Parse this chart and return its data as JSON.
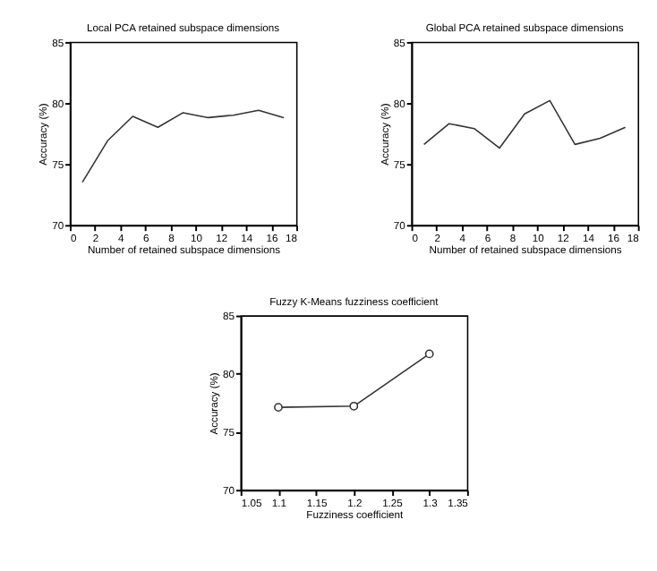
{
  "chart_data": [
    {
      "type": "line",
      "title": "Local PCA retained subspace dimensions",
      "xlabel": "Number of retained subspace dimensions",
      "ylabel": "Accuracy (%)",
      "x": [
        1,
        3,
        5,
        7,
        9,
        11,
        13,
        15,
        17
      ],
      "values": [
        73.5,
        76.9,
        78.9,
        78.0,
        79.2,
        78.8,
        79.0,
        79.4,
        78.8
      ],
      "color": "#333333",
      "xlim": [
        0,
        18
      ],
      "ylim": [
        70,
        85
      ],
      "xticks": [
        0,
        2,
        4,
        6,
        8,
        10,
        12,
        14,
        16,
        18
      ],
      "yticks": [
        70,
        75,
        80,
        85
      ],
      "grid": false,
      "marker": "none"
    },
    {
      "type": "line",
      "title": "Global PCA retained subspace dimensions",
      "xlabel": "Number of retained subspace dimensions",
      "ylabel": "Accuracy (%)",
      "x": [
        1,
        3,
        5,
        7,
        9,
        11,
        13,
        15,
        17
      ],
      "values": [
        76.6,
        78.3,
        77.9,
        76.3,
        79.1,
        80.2,
        76.6,
        77.1,
        78.0
      ],
      "color": "#333333",
      "xlim": [
        0,
        18
      ],
      "ylim": [
        70,
        85
      ],
      "xticks": [
        0,
        2,
        4,
        6,
        8,
        10,
        12,
        14,
        16,
        18
      ],
      "yticks": [
        70,
        75,
        80,
        85
      ],
      "grid": false,
      "marker": "none"
    },
    {
      "type": "line",
      "title": "Fuzzy K-Means fuzziness coefficient",
      "xlabel": "Fuzziness coefficient",
      "ylabel": "Accuracy (%)",
      "x": [
        1.1,
        1.2,
        1.3
      ],
      "values": [
        77.1,
        77.2,
        81.7
      ],
      "color": "#333333",
      "xlim": [
        1.05,
        1.35
      ],
      "ylim": [
        70,
        85
      ],
      "xticks": [
        1.05,
        1.1,
        1.15,
        1.2,
        1.25,
        1.3,
        1.35
      ],
      "yticks": [
        70,
        75,
        80,
        85
      ],
      "grid": false,
      "marker": "circle"
    }
  ]
}
